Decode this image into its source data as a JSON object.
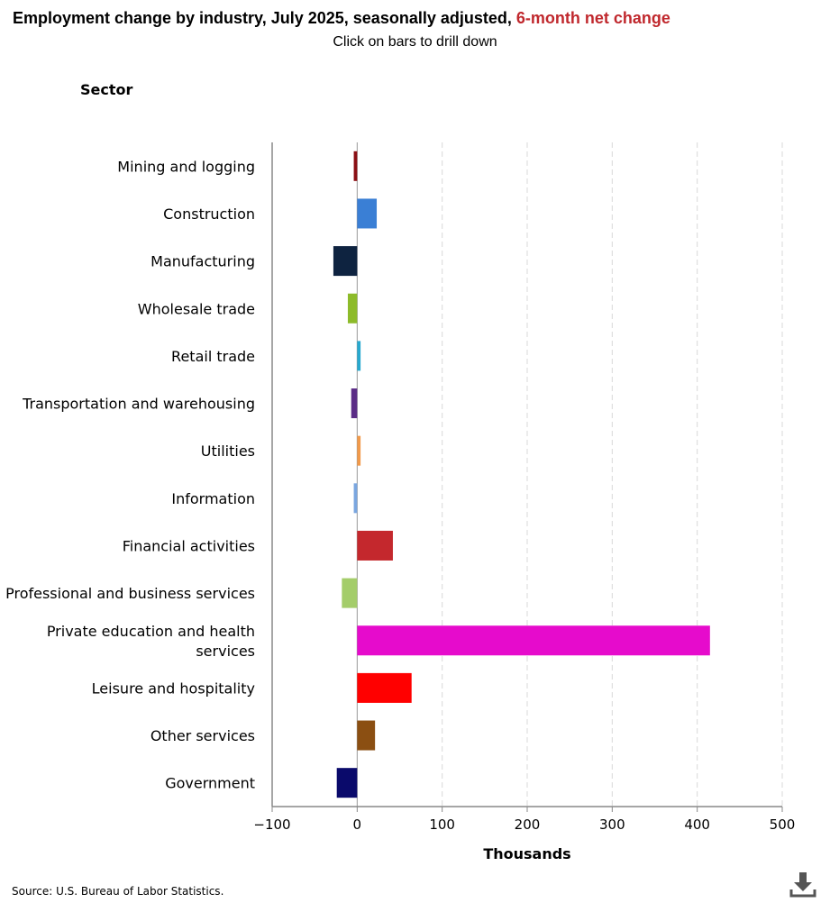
{
  "header": {
    "title_main": "Employment change by industry, July 2025, seasonally adjusted, ",
    "title_highlight": "6-month net change",
    "subtitle": "Click on bars to drill down"
  },
  "footer": {
    "source": "Source: U.S. Bureau of Labor Statistics.",
    "download_icon": "download-icon"
  },
  "colors": {
    "title_highlight": "#c0282d",
    "gridline": "#d9d9d9",
    "axis": "#888888"
  },
  "chart_data": {
    "type": "bar",
    "orientation": "horizontal",
    "title": "Employment change by industry, July 2025, seasonally adjusted, 6-month net change",
    "ylabel": "Sector",
    "xlabel": "Thousands",
    "xlim": [
      -100,
      500
    ],
    "xticks": [
      -100,
      0,
      100,
      200,
      300,
      400,
      500
    ],
    "xtick_labels": [
      "−100",
      "0",
      "100",
      "200",
      "300",
      "400",
      "500"
    ],
    "grid": true,
    "categories": [
      "Mining and logging",
      "Construction",
      "Manufacturing",
      "Wholesale trade",
      "Retail trade",
      "Transportation and warehousing",
      "Utilities",
      "Information",
      "Financial activities",
      "Professional and business services",
      "Private education and health services",
      "Leisure and hospitality",
      "Other services",
      "Government"
    ],
    "values": [
      -4,
      23,
      -28,
      -11,
      4,
      -7,
      4,
      -4,
      42,
      -18,
      415,
      64,
      21,
      -24
    ],
    "bar_colors": [
      "#8b0f14",
      "#3a7fd5",
      "#0e2340",
      "#8dbb2a",
      "#27a9cf",
      "#5b2c86",
      "#f29a4a",
      "#7aa6e0",
      "#c4282d",
      "#a4cd6a",
      "#e60bcc",
      "#ff0000",
      "#8b4f12",
      "#0a0a6b"
    ]
  }
}
